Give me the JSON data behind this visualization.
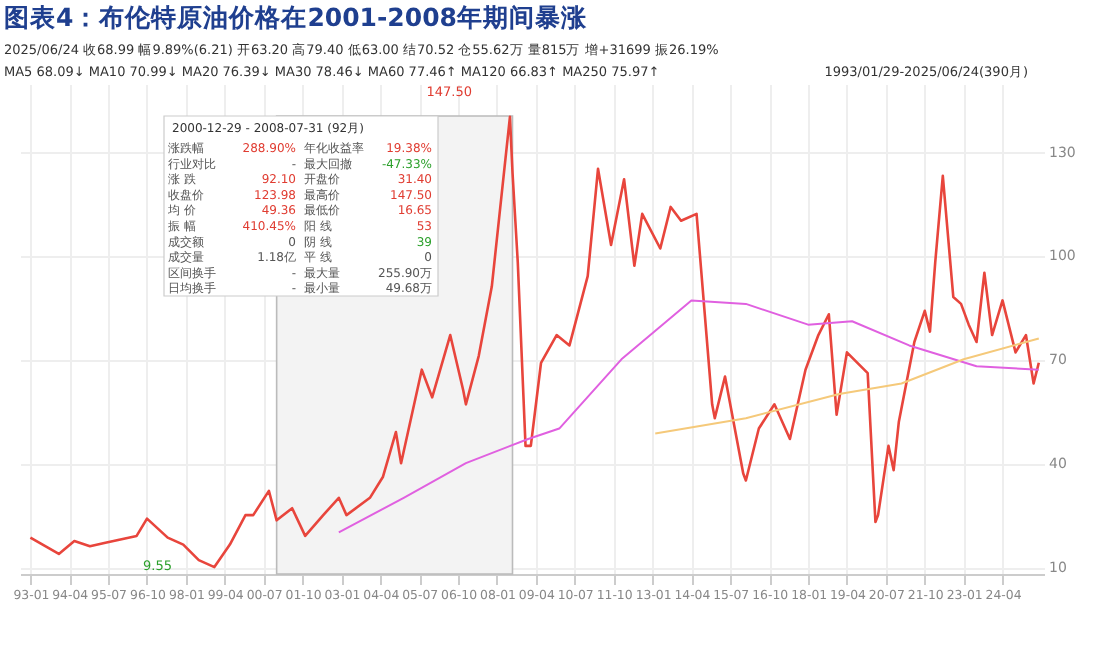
{
  "chart_data": {
    "type": "line",
    "title": "图表4：布伦特原油价格在2001-2008年期间暴涨",
    "annotations": [
      "2025/06/24 收68.99 幅9.89%(6.21) 开63.20 高79.40 低63.00 结70.52 仓55.62万 量815万 增+31699 振26.19%",
      "MA5 68.09↓ MA10 70.99↓ MA20 76.39↓ MA30 78.46↓ MA60 77.46↑ MA120 66.83↑ MA250 75.97↑",
      "1993/01/29-2025/06/24(390月)",
      "2000-12-29 - 2008-07-31 (92月)",
      "涨跌幅",
      "288.90%",
      "年化收益率",
      "19.38%",
      "行业对比",
      "-",
      "最大回撤",
      "-47.33%",
      "涨 跌",
      "92.10",
      "开盘价",
      "31.40",
      "收盘价",
      "123.98",
      "最高价",
      "147.50",
      "均 价",
      "49.36",
      "最低价",
      "16.65",
      "振 幅",
      "410.45%",
      "阳 线",
      "53",
      "成交额",
      "0",
      "阴 线",
      "39",
      "成交量",
      "1.18亿",
      "平 线",
      "0",
      "区间换手",
      "-",
      "最大量",
      "255.90万",
      "日均换手",
      "-",
      "最小量",
      "49.68万",
      "147.50",
      "9.55"
    ],
    "xlim": [
      "1992-09",
      "2025-08"
    ],
    "xticks": [
      {
        "value": "1993-01",
        "label": "93-01"
      },
      {
        "value": "1994-04",
        "label": "94-04"
      },
      {
        "value": "1995-07",
        "label": "95-07"
      },
      {
        "value": "1996-10",
        "label": "96-10"
      },
      {
        "value": "1998-01",
        "label": "98-01"
      },
      {
        "value": "1999-04",
        "label": "99-04"
      },
      {
        "value": "2000-07",
        "label": "00-07"
      },
      {
        "value": "2001-10",
        "label": "01-10"
      },
      {
        "value": "2003-01",
        "label": "03-01"
      },
      {
        "value": "2004-04",
        "label": "04-04"
      },
      {
        "value": "2005-07",
        "label": "05-07"
      },
      {
        "value": "2006-10",
        "label": "06-10"
      },
      {
        "value": "2008-01",
        "label": "08-01"
      },
      {
        "value": "2009-04",
        "label": "09-04"
      },
      {
        "value": "2010-07",
        "label": "10-07"
      },
      {
        "value": "2011-10",
        "label": "11-10"
      },
      {
        "value": "2013-01",
        "label": "13-01"
      },
      {
        "value": "2014-04",
        "label": "14-04"
      },
      {
        "value": "2015-07",
        "label": "15-07"
      },
      {
        "value": "2016-10",
        "label": "16-10"
      },
      {
        "value": "2018-01",
        "label": "18-01"
      },
      {
        "value": "2019-04",
        "label": "19-04"
      },
      {
        "value": "2020-07",
        "label": "20-07"
      },
      {
        "value": "2021-10",
        "label": "21-10"
      },
      {
        "value": "2023-01",
        "label": "23-01"
      },
      {
        "value": "2024-04",
        "label": "24-04"
      }
    ],
    "ylim": [
      8,
      149.5
    ],
    "yticks": [
      10,
      40,
      70,
      100,
      130
    ],
    "grid": true,
    "bands": [
      {
        "axis": "x",
        "from": "2000-12",
        "to": "2008-07",
        "color": "#f3f3f3"
      }
    ],
    "series": [
      {
        "color": "#e8453c",
        "x": [
          "1993-01",
          "1993-12",
          "1994-06",
          "1994-12",
          "1995-06",
          "1996-06",
          "1996-10",
          "1997-06",
          "1997-12",
          "1998-06",
          "1998-12",
          "1999-06",
          "1999-12",
          "2000-03",
          "2000-09",
          "2000-12",
          "2001-06",
          "2001-11",
          "2002-06",
          "2002-12",
          "2003-03",
          "2003-12",
          "2004-05",
          "2004-10",
          "2004-12",
          "2005-08",
          "2005-12",
          "2006-07",
          "2006-12",
          "2007-01",
          "2007-06",
          "2007-11",
          "2008-06",
          "2008-07",
          "2008-09",
          "2008-12",
          "2009-02",
          "2009-06",
          "2009-12",
          "2010-05",
          "2010-12",
          "2011-04",
          "2011-09",
          "2012-02",
          "2012-06",
          "2012-09",
          "2013-04",
          "2013-08",
          "2013-12",
          "2014-06",
          "2014-12",
          "2015-01",
          "2015-05",
          "2015-12",
          "2016-01",
          "2016-06",
          "2016-12",
          "2017-06",
          "2017-12",
          "2018-05",
          "2018-09",
          "2018-12",
          "2019-04",
          "2019-12",
          "2020-03",
          "2020-04",
          "2020-08",
          "2020-10",
          "2020-12",
          "2021-06",
          "2021-10",
          "2021-12",
          "2022-02",
          "2022-05",
          "2022-09",
          "2022-12",
          "2023-03",
          "2023-06",
          "2023-09",
          "2023-12",
          "2024-04",
          "2024-09",
          "2025-01",
          "2025-04",
          "2025-06"
        ],
        "values": [
          18.5,
          13.8,
          17.5,
          16,
          17,
          19,
          24,
          18.5,
          16.5,
          12,
          10,
          16.5,
          25,
          25,
          32,
          23.5,
          27,
          19,
          25,
          30,
          25,
          30,
          36,
          49,
          40,
          67,
          59,
          77,
          61,
          57,
          71,
          91,
          140,
          124,
          98,
          45,
          45,
          69,
          77,
          74,
          94,
          125,
          103,
          122,
          97,
          112,
          102,
          114,
          110,
          112,
          57,
          53,
          65,
          37,
          35,
          50,
          57,
          47,
          67,
          77,
          83,
          54,
          72,
          66,
          23,
          25,
          45,
          38,
          52,
          75,
          84,
          78,
          98,
          123,
          88,
          86,
          80,
          75,
          95,
          77,
          87,
          72,
          77,
          63,
          69
        ]
      },
      {
        "color": "#e060e0",
        "x": [
          "2002-12",
          "2005-01",
          "2007-01",
          "2009-01",
          "2010-01",
          "2012-01",
          "2014-04",
          "2016-01",
          "2018-01",
          "2019-06",
          "2021-04",
          "2023-06",
          "2025-06"
        ],
        "values": [
          20,
          30,
          40,
          47,
          50,
          70,
          87,
          86,
          80,
          81,
          74,
          68,
          67
        ]
      },
      {
        "color": "#f5c97a",
        "x": [
          "2013-02",
          "2016-01",
          "2019-01",
          "2021-01",
          "2023-01",
          "2025-06"
        ],
        "values": [
          48.6,
          53,
          60,
          63,
          70,
          76
        ]
      }
    ]
  }
}
